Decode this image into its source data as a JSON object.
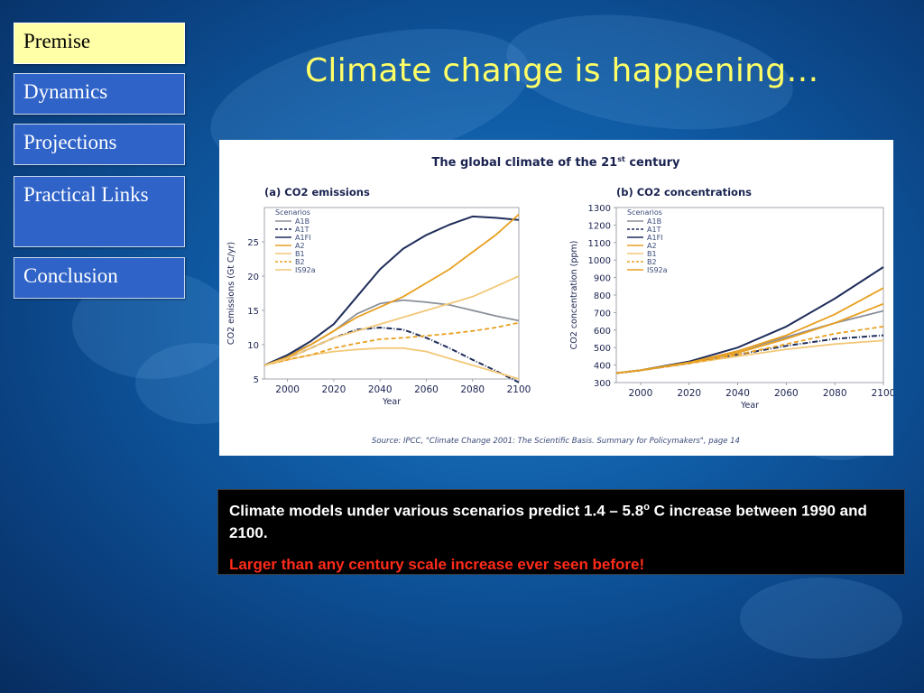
{
  "nav": {
    "items": [
      {
        "label": "Premise",
        "active": true
      },
      {
        "label": "Dynamics",
        "active": false
      },
      {
        "label": "Projections",
        "active": false
      },
      {
        "label": "Practical Links",
        "active": false
      },
      {
        "label": "Conclusion",
        "active": false
      }
    ]
  },
  "slide": {
    "title": "Climate change is happening…",
    "caption_line1": "Climate models under various scenarios predict 1.4 – 5.8o C increase between 1990 and 2100.",
    "caption_line2": "Larger than any century scale increase ever seen before!"
  },
  "figure": {
    "heading": "The global climate of the 21st century",
    "source": "Source: IPCC, \"Climate Change 2001: The Scientific Basis. Summary for Policymakers\", page 14"
  },
  "colors": {
    "title": "#ffff66",
    "nav_active_bg": "#ffffa8",
    "nav_bg": "#2f63c8",
    "caption_highlight": "#ff2b1a"
  },
  "chart_data": [
    {
      "type": "line",
      "title": "(a) CO2 emissions",
      "xlabel": "Year",
      "ylabel": "CO2 emissions (Gt C/yr)",
      "xlim": [
        1990,
        2100
      ],
      "ylim": [
        5,
        30
      ],
      "xticks": [
        2000,
        2020,
        2040,
        2060,
        2080,
        2100
      ],
      "yticks": [
        5,
        10,
        15,
        20,
        25
      ],
      "legend_title": "Scenarios",
      "legend_position": "top-left",
      "series": [
        {
          "name": "A1B",
          "color": "#8a8f99",
          "dash": "solid",
          "x": [
            1990,
            2000,
            2010,
            2020,
            2030,
            2040,
            2050,
            2060,
            2070,
            2080,
            2090,
            2100
          ],
          "y": [
            7,
            8.5,
            10,
            12,
            14.5,
            16,
            16.5,
            16.2,
            15.8,
            15,
            14.2,
            13.5
          ]
        },
        {
          "name": "A1T",
          "color": "#1f2d5a",
          "dash": "dashdot",
          "x": [
            1990,
            2000,
            2010,
            2020,
            2030,
            2040,
            2050,
            2060,
            2070,
            2080,
            2090,
            2100
          ],
          "y": [
            7,
            8,
            9.5,
            11,
            12.2,
            12.5,
            12.2,
            11,
            9.5,
            7.8,
            6.2,
            4.5
          ]
        },
        {
          "name": "A1FI",
          "color": "#1f2d5a",
          "dash": "solid",
          "x": [
            1990,
            2000,
            2010,
            2020,
            2030,
            2040,
            2050,
            2060,
            2070,
            2080,
            2090,
            2100
          ],
          "y": [
            7,
            8.5,
            10.5,
            13,
            17,
            21,
            24,
            26,
            27.5,
            28.7,
            28.5,
            28.2
          ]
        },
        {
          "name": "A2",
          "color": "#e8a020",
          "dash": "solid",
          "x": [
            1990,
            2000,
            2010,
            2020,
            2030,
            2040,
            2050,
            2060,
            2070,
            2080,
            2090,
            2100
          ],
          "y": [
            7,
            8.2,
            10,
            12,
            14,
            15.5,
            17,
            19,
            21,
            23.5,
            26,
            29
          ]
        },
        {
          "name": "B1",
          "color": "#f2c878",
          "dash": "solid",
          "x": [
            1990,
            2000,
            2010,
            2020,
            2030,
            2040,
            2050,
            2060,
            2070,
            2080,
            2090,
            2100
          ],
          "y": [
            7,
            7.8,
            8.5,
            9,
            9.3,
            9.5,
            9.5,
            9,
            8,
            7,
            6,
            5
          ]
        },
        {
          "name": "B2",
          "color": "#e8a020",
          "dash": "dashed",
          "x": [
            1990,
            2000,
            2010,
            2020,
            2030,
            2040,
            2050,
            2060,
            2070,
            2080,
            2090,
            2100
          ],
          "y": [
            7,
            7.8,
            8.5,
            9.5,
            10.2,
            10.8,
            11,
            11.3,
            11.6,
            12,
            12.5,
            13.2
          ]
        },
        {
          "name": "IS92a",
          "color": "#f2c878",
          "dash": "solid",
          "x": [
            1990,
            2000,
            2010,
            2020,
            2030,
            2040,
            2050,
            2060,
            2070,
            2080,
            2090,
            2100
          ],
          "y": [
            7,
            8,
            9.5,
            11,
            12,
            13,
            14,
            15,
            16,
            17,
            18.5,
            20
          ]
        }
      ]
    },
    {
      "type": "line",
      "title": "(b) CO2 concentrations",
      "xlabel": "Year",
      "ylabel": "CO2 concentration (ppm)",
      "xlim": [
        1990,
        2100
      ],
      "ylim": [
        300,
        1300
      ],
      "xticks": [
        2000,
        2020,
        2040,
        2060,
        2080,
        2100
      ],
      "yticks": [
        300,
        400,
        500,
        600,
        700,
        800,
        900,
        1000,
        1100,
        1200,
        1300
      ],
      "legend_title": "Scenarios",
      "legend_position": "top-left",
      "series": [
        {
          "name": "A1B",
          "color": "#8a8f99",
          "dash": "solid",
          "x": [
            1990,
            2000,
            2020,
            2040,
            2060,
            2080,
            2100
          ],
          "y": [
            354,
            370,
            415,
            480,
            560,
            640,
            710
          ]
        },
        {
          "name": "A1T",
          "color": "#1f2d5a",
          "dash": "dashdot",
          "x": [
            1990,
            2000,
            2020,
            2040,
            2060,
            2080,
            2100
          ],
          "y": [
            354,
            370,
            410,
            460,
            510,
            550,
            570
          ]
        },
        {
          "name": "A1FI",
          "color": "#1f2d5a",
          "dash": "solid",
          "x": [
            1990,
            2000,
            2020,
            2040,
            2060,
            2080,
            2100
          ],
          "y": [
            354,
            370,
            420,
            500,
            620,
            780,
            960
          ]
        },
        {
          "name": "A2",
          "color": "#e8a020",
          "dash": "solid",
          "x": [
            1990,
            2000,
            2020,
            2040,
            2060,
            2080,
            2100
          ],
          "y": [
            354,
            370,
            415,
            480,
            570,
            690,
            840
          ]
        },
        {
          "name": "B1",
          "color": "#f2c878",
          "dash": "solid",
          "x": [
            1990,
            2000,
            2020,
            2040,
            2060,
            2080,
            2100
          ],
          "y": [
            354,
            370,
            410,
            450,
            490,
            520,
            540
          ]
        },
        {
          "name": "B2",
          "color": "#e8a020",
          "dash": "dashed",
          "x": [
            1990,
            2000,
            2020,
            2040,
            2060,
            2080,
            2100
          ],
          "y": [
            354,
            370,
            410,
            460,
            520,
            580,
            620
          ]
        },
        {
          "name": "IS92a",
          "color": "#e8a020",
          "dash": "solid",
          "x": [
            1990,
            2000,
            2020,
            2040,
            2060,
            2080,
            2100
          ],
          "y": [
            354,
            370,
            415,
            470,
            550,
            640,
            750
          ]
        }
      ]
    }
  ]
}
